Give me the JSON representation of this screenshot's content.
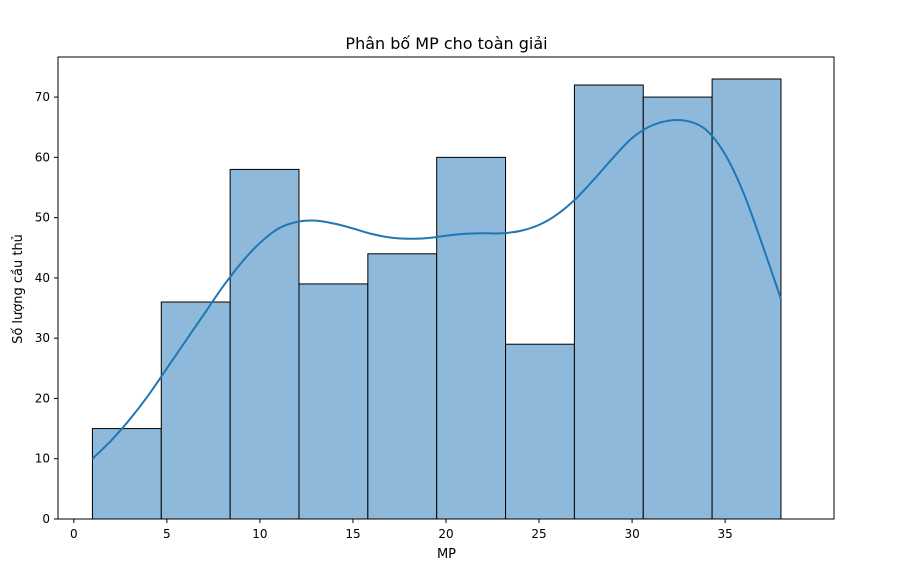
{
  "chart_data": {
    "type": "bar",
    "subtype": "histogram-with-kde",
    "title": "Phân bố MP cho toàn giải",
    "xlabel": "MP",
    "ylabel": "Số lượng cầu thủ",
    "xlim": [
      -0.85,
      40.85
    ],
    "ylim": [
      0,
      76.65
    ],
    "xticks": [
      0,
      5,
      10,
      15,
      20,
      25,
      30,
      35
    ],
    "yticks": [
      0,
      10,
      20,
      30,
      40,
      50,
      60,
      70
    ],
    "grid": false,
    "legend": "none",
    "bins": [
      {
        "x0": 1.0,
        "x1": 4.7,
        "count": 15
      },
      {
        "x0": 4.7,
        "x1": 8.4,
        "count": 36
      },
      {
        "x0": 8.4,
        "x1": 12.1,
        "count": 58
      },
      {
        "x0": 12.1,
        "x1": 15.8,
        "count": 39
      },
      {
        "x0": 15.8,
        "x1": 19.5,
        "count": 44
      },
      {
        "x0": 19.5,
        "x1": 23.2,
        "count": 60
      },
      {
        "x0": 23.2,
        "x1": 26.9,
        "count": 29
      },
      {
        "x0": 26.9,
        "x1": 30.6,
        "count": 72
      },
      {
        "x0": 30.6,
        "x1": 34.3,
        "count": 70
      },
      {
        "x0": 34.3,
        "x1": 38.0,
        "count": 73
      }
    ],
    "kde": {
      "x": [
        1,
        2,
        3,
        4,
        5,
        6,
        7,
        8,
        9,
        10,
        11,
        12,
        13,
        14,
        15,
        16,
        17,
        18,
        19,
        20,
        21,
        22,
        23,
        24,
        25,
        26,
        27,
        28,
        29,
        30,
        31,
        32,
        33,
        34,
        35,
        36,
        37,
        38
      ],
      "y": [
        10,
        13,
        16.5,
        20.5,
        25,
        29.5,
        34,
        38.5,
        42.5,
        45.8,
        48.2,
        49.3,
        49.5,
        49,
        48.2,
        47.3,
        46.7,
        46.5,
        46.6,
        47,
        47.3,
        47.4,
        47.4,
        47.8,
        48.8,
        50.6,
        53.2,
        56.5,
        60,
        63.2,
        65.2,
        66.1,
        66,
        64.5,
        60.5,
        54,
        45.5,
        36.5
      ]
    },
    "colors": {
      "bar_fill": "#8fb9da",
      "bar_edge": "#000000",
      "kde_line": "#1f77b4"
    }
  }
}
